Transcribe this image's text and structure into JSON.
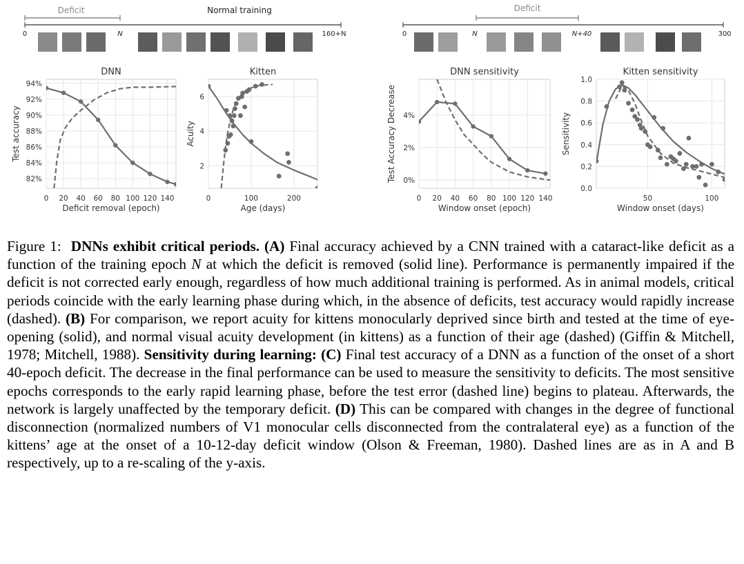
{
  "timeline_a": {
    "deficit_label": "Deficit",
    "normal_label": "Normal training",
    "start": "0",
    "n": "N",
    "end": "160+N"
  },
  "timeline_c": {
    "deficit_label": "Deficit",
    "start": "0",
    "n": "N",
    "n40": "N+40",
    "end": "300"
  },
  "chart_data": [
    {
      "id": "dnn",
      "type": "line",
      "title": "DNN",
      "xlabel": "Deficit removal (epoch)",
      "ylabel": "Test accuracy",
      "xlim": [
        0,
        150
      ],
      "ylim": [
        80.8,
        94.5
      ],
      "xticks": [
        0,
        20,
        40,
        60,
        80,
        100,
        120,
        140
      ],
      "yticks": [
        82,
        84,
        86,
        88,
        90,
        92,
        94
      ],
      "ytick_labels": [
        "82%",
        "84%",
        "86%",
        "88%",
        "90%",
        "92%",
        "94%"
      ],
      "grid": true,
      "series": [
        {
          "style": "solid-markers",
          "x": [
            0,
            20,
            40,
            60,
            80,
            100,
            120,
            140,
            150
          ],
          "y": [
            93.4,
            92.8,
            91.7,
            89.4,
            86.2,
            84.0,
            82.6,
            81.6,
            81.3
          ]
        },
        {
          "style": "dashed",
          "x": [
            9,
            12,
            16,
            22,
            30,
            40,
            55,
            70,
            85,
            100,
            120,
            150
          ],
          "y": [
            80.8,
            84.0,
            86.8,
            88.4,
            89.6,
            90.6,
            91.9,
            92.8,
            93.3,
            93.5,
            93.5,
            93.6
          ]
        }
      ]
    },
    {
      "id": "kitten",
      "type": "line",
      "title": "Kitten",
      "xlabel": "Age (days)",
      "ylabel": "Acuity",
      "xlim": [
        0,
        255
      ],
      "ylim": [
        0.7,
        7.0
      ],
      "xticks": [
        0,
        100,
        200
      ],
      "yticks": [
        2,
        4,
        6
      ],
      "grid": true,
      "series": [
        {
          "style": "solid",
          "x": [
            0,
            20,
            40,
            60,
            80,
            100,
            130,
            160,
            200,
            255
          ],
          "y": [
            6.6,
            5.9,
            5.1,
            4.4,
            3.8,
            3.3,
            2.7,
            2.2,
            1.75,
            1.2
          ]
        },
        {
          "style": "dashed",
          "x": [
            30,
            35,
            40,
            45,
            50,
            55,
            60,
            70,
            85,
            100,
            120,
            150
          ],
          "y": [
            0.7,
            2.0,
            3.1,
            3.9,
            4.5,
            5.0,
            5.4,
            5.9,
            6.3,
            6.5,
            6.65,
            6.7
          ]
        },
        {
          "style": "scatter",
          "x": [
            0,
            40,
            42,
            45,
            48,
            50,
            52,
            55,
            58,
            60,
            62,
            65,
            70,
            75,
            78,
            80,
            85,
            90,
            95,
            100,
            110,
            125,
            165,
            185,
            188,
            255
          ],
          "y": [
            6.6,
            2.9,
            5.2,
            3.3,
            3.7,
            4.9,
            3.8,
            4.6,
            4.3,
            4.9,
            5.3,
            5.6,
            5.9,
            4.9,
            6.0,
            6.2,
            5.4,
            6.3,
            6.4,
            3.4,
            6.6,
            6.7,
            1.4,
            2.7,
            2.2,
            0.7
          ]
        }
      ]
    },
    {
      "id": "dnn-sensitivity",
      "type": "line",
      "title": "DNN sensitivity",
      "xlabel": "Window onset (epoch)",
      "ylabel": "Test Accuracy Decrease",
      "xlim": [
        0,
        145
      ],
      "ylim": [
        -0.5,
        6.2
      ],
      "xticks": [
        0,
        20,
        40,
        60,
        80,
        100,
        120,
        140
      ],
      "yticks": [
        0,
        2,
        4
      ],
      "ytick_labels": [
        "0%",
        "2%",
        "4%"
      ],
      "grid": true,
      "series": [
        {
          "style": "solid-markers",
          "x": [
            0,
            20,
            40,
            60,
            80,
            100,
            120,
            140
          ],
          "y": [
            3.6,
            4.8,
            4.7,
            3.3,
            2.7,
            1.3,
            0.6,
            0.4
          ]
        },
        {
          "style": "dashed",
          "x": [
            20,
            30,
            40,
            50,
            60,
            70,
            80,
            90,
            100,
            120,
            145
          ],
          "y": [
            6.2,
            4.8,
            3.7,
            2.8,
            2.2,
            1.6,
            1.1,
            0.8,
            0.5,
            0.2,
            0.0
          ]
        }
      ]
    },
    {
      "id": "kitten-sensitivity",
      "type": "line",
      "title": "Kitten sensitivity",
      "xlabel": "Window onset (days)",
      "ylabel": "Sensitivity",
      "xlim": [
        10,
        110
      ],
      "ylim": [
        0.0,
        1.0
      ],
      "xticks": [
        50,
        100
      ],
      "yticks": [
        0.0,
        0.2,
        0.4,
        0.6,
        0.8,
        1.0
      ],
      "ytick_labels": [
        "0.0",
        "0.2",
        "0.4",
        "0.6",
        "0.8",
        "1.0"
      ],
      "grid": true,
      "series": [
        {
          "style": "solid",
          "x": [
            10,
            15,
            20,
            25,
            30,
            35,
            40,
            50,
            60,
            70,
            80,
            90,
            100,
            110
          ],
          "y": [
            0.23,
            0.58,
            0.8,
            0.91,
            0.95,
            0.92,
            0.86,
            0.71,
            0.56,
            0.43,
            0.33,
            0.25,
            0.18,
            0.13
          ]
        },
        {
          "style": "dashed",
          "x": [
            25,
            30,
            35,
            40,
            45,
            50,
            60,
            70,
            80,
            90,
            100,
            110
          ],
          "y": [
            0.82,
            0.94,
            0.9,
            0.78,
            0.62,
            0.48,
            0.32,
            0.23,
            0.19,
            0.16,
            0.13,
            0.1
          ]
        },
        {
          "style": "scatter",
          "x": [
            10,
            18,
            28,
            30,
            32,
            35,
            38,
            40,
            42,
            44,
            45,
            48,
            50,
            52,
            55,
            58,
            60,
            62,
            65,
            68,
            70,
            72,
            75,
            78,
            80,
            82,
            85,
            88,
            90,
            92,
            95,
            100,
            105,
            110
          ],
          "y": [
            0.25,
            0.75,
            0.93,
            0.97,
            0.9,
            0.78,
            0.72,
            0.66,
            0.63,
            0.58,
            0.55,
            0.52,
            0.4,
            0.38,
            0.65,
            0.35,
            0.28,
            0.55,
            0.22,
            0.29,
            0.27,
            0.25,
            0.32,
            0.18,
            0.22,
            0.46,
            0.2,
            0.2,
            0.1,
            0.22,
            0.03,
            0.22,
            0.15,
            0.08
          ]
        }
      ]
    }
  ],
  "caption": {
    "fig_label": "Figure 1:",
    "title": "DNNs exhibit critical periods.",
    "a_tag": "(A)",
    "a_text_1": " Final accuracy achieved by a CNN trained with a cataract-like deficit as a function of the training epoch ",
    "a_n": "N",
    "a_text_2": " at which the deficit is removed (solid line). Performance is permanently impaired if the deficit is not corrected early enough, regardless of how much additional training is performed. As in animal models, critical periods coincide with the early learning phase during which, in the absence of deficits, test accuracy would rapidly increase (dashed). ",
    "b_tag": "(B)",
    "b_text": " For comparison, we report acuity for kittens monocularly deprived since birth and tested at the time of eye-opening (solid), and normal visual acuity development (in kittens) as a function of their age (dashed) (Giffin & Mitchell, 1978; Mitchell, 1988). ",
    "sens_title": "Sensitivity during learning:",
    "c_tag": "(C)",
    "c_text": " Final test accuracy of a DNN as a function of the onset of a short 40-epoch deficit. The decrease in the final performance can be used to measure the sensitivity to deficits. The most sensitive epochs corresponds to the early rapid learning phase, before the test error (dashed line) begins to plateau. Afterwards, the network is largely unaffected by the temporary deficit. ",
    "d_tag": "(D)",
    "d_text": " This can be compared with changes in the degree of functional disconnection (normalized numbers of V1 monocular cells disconnected from the contralateral eye) as a function of the kittens’ age at the onset of a 10-12-day deficit window (Olson & Freeman, 1980). Dashed lines are as in A and B respectively, up to a re-scaling of the y-axis."
  }
}
